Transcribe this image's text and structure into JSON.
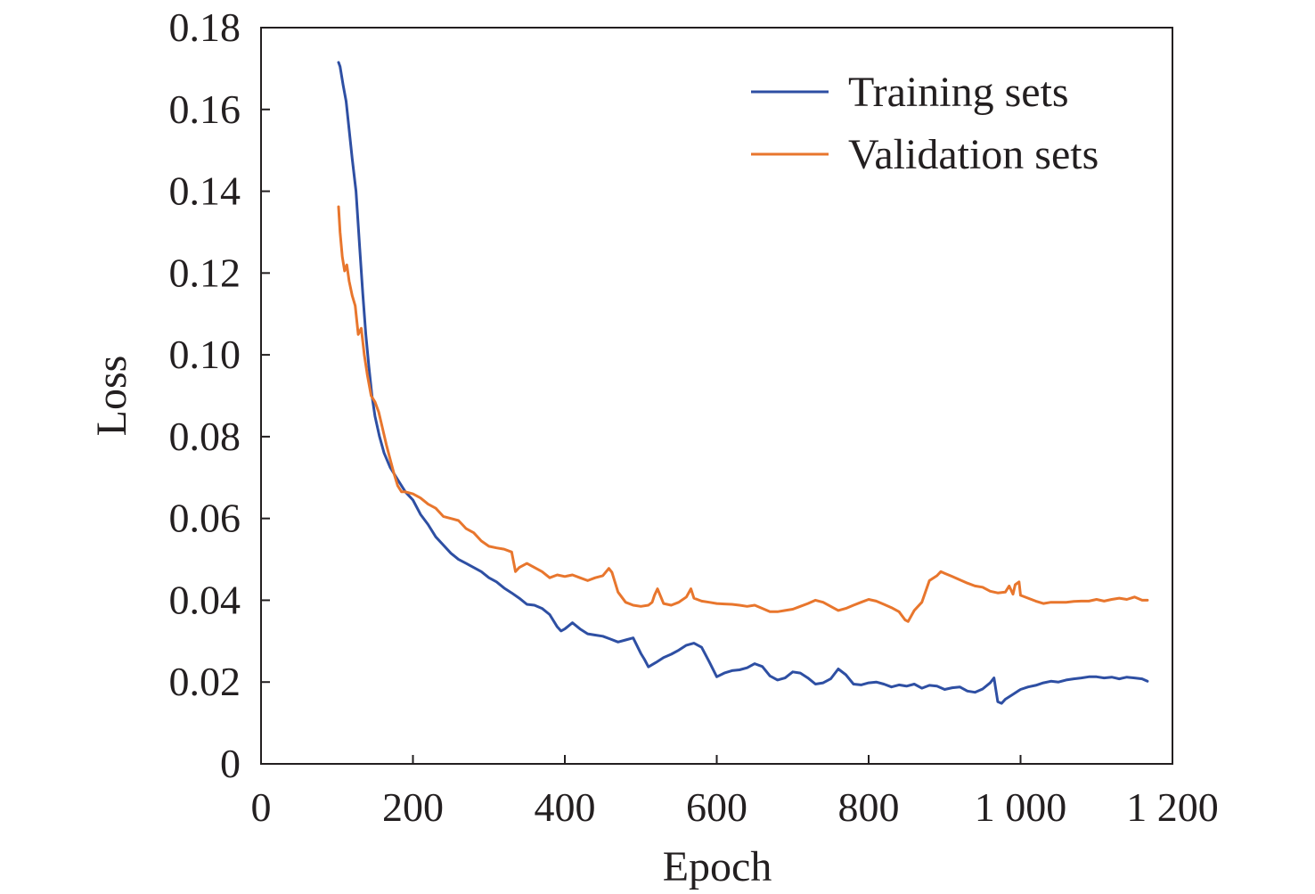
{
  "chart_data": {
    "type": "line",
    "title": "",
    "xlabel": "Epoch",
    "ylabel": "Loss",
    "xlim": [
      0,
      1200
    ],
    "ylim": [
      0,
      0.18
    ],
    "x_ticks": [
      0,
      200,
      400,
      600,
      800,
      1000,
      1200
    ],
    "x_tick_labels": [
      "0",
      "200",
      "400",
      "600",
      "800",
      "1 000",
      "1 200"
    ],
    "y_ticks": [
      0,
      0.02,
      0.04,
      0.06,
      0.08,
      0.1,
      0.12,
      0.14,
      0.16,
      0.18
    ],
    "y_tick_labels": [
      "0",
      "0.02",
      "0.04",
      "0.06",
      "0.08",
      "0.10",
      "0.12",
      "0.14",
      "0.16",
      "0.18"
    ],
    "grid": false,
    "legend_position": "top-right",
    "series": [
      {
        "name": "Training sets",
        "color": "#2e4fa3",
        "x": [
          102,
          104,
          108,
          112,
          116,
          120,
          125,
          130,
          134,
          138,
          142,
          146,
          150,
          156,
          162,
          170,
          180,
          190,
          200,
          210,
          220,
          230,
          240,
          250,
          260,
          270,
          280,
          290,
          300,
          310,
          320,
          330,
          340,
          350,
          360,
          370,
          380,
          390,
          395,
          400,
          410,
          420,
          430,
          440,
          450,
          460,
          470,
          480,
          490,
          500,
          505,
          510,
          520,
          530,
          540,
          550,
          560,
          570,
          580,
          590,
          600,
          610,
          620,
          630,
          640,
          650,
          660,
          670,
          680,
          690,
          700,
          710,
          720,
          730,
          740,
          750,
          760,
          770,
          780,
          790,
          800,
          810,
          820,
          830,
          840,
          850,
          860,
          870,
          880,
          890,
          900,
          910,
          920,
          930,
          940,
          950,
          960,
          965,
          970,
          975,
          980,
          990,
          1000,
          1010,
          1020,
          1030,
          1040,
          1050,
          1060,
          1070,
          1080,
          1090,
          1100,
          1110,
          1120,
          1130,
          1140,
          1150,
          1160,
          1167
        ],
        "values": [
          0.1715,
          0.1705,
          0.166,
          0.162,
          0.155,
          0.148,
          0.14,
          0.126,
          0.115,
          0.105,
          0.097,
          0.09,
          0.085,
          0.08,
          0.076,
          0.0725,
          0.0695,
          0.0665,
          0.0645,
          0.061,
          0.0585,
          0.0555,
          0.0535,
          0.0515,
          0.05,
          0.049,
          0.048,
          0.047,
          0.0455,
          0.0445,
          0.043,
          0.0418,
          0.0405,
          0.039,
          0.0388,
          0.038,
          0.0365,
          0.0335,
          0.0325,
          0.033,
          0.0345,
          0.033,
          0.0318,
          0.0315,
          0.0312,
          0.0305,
          0.0298,
          0.0303,
          0.0308,
          0.027,
          0.0255,
          0.0237,
          0.0248,
          0.026,
          0.0268,
          0.0278,
          0.029,
          0.0295,
          0.0285,
          0.025,
          0.0213,
          0.0222,
          0.0228,
          0.023,
          0.0235,
          0.0245,
          0.0238,
          0.0215,
          0.0205,
          0.021,
          0.0225,
          0.0222,
          0.021,
          0.0195,
          0.0198,
          0.0208,
          0.0232,
          0.0218,
          0.0195,
          0.0193,
          0.0198,
          0.02,
          0.0195,
          0.0188,
          0.0193,
          0.019,
          0.0195,
          0.0185,
          0.0192,
          0.019,
          0.0182,
          0.0186,
          0.0188,
          0.0178,
          0.0175,
          0.0183,
          0.0198,
          0.021,
          0.0152,
          0.0148,
          0.0158,
          0.017,
          0.0182,
          0.0188,
          0.0192,
          0.0198,
          0.0202,
          0.02,
          0.0205,
          0.0208,
          0.021,
          0.0213,
          0.0213,
          0.021,
          0.0212,
          0.0208,
          0.0212,
          0.021,
          0.0208,
          0.0202
        ]
      },
      {
        "name": "Validation sets",
        "color": "#e8762d",
        "x": [
          102,
          104,
          107,
          110,
          113,
          116,
          120,
          124,
          128,
          132,
          136,
          140,
          145,
          150,
          155,
          160,
          165,
          170,
          175,
          180,
          185,
          190,
          200,
          210,
          220,
          230,
          240,
          250,
          260,
          265,
          270,
          280,
          290,
          300,
          310,
          320,
          330,
          335,
          340,
          350,
          360,
          370,
          380,
          390,
          400,
          410,
          420,
          430,
          440,
          450,
          458,
          462,
          470,
          480,
          490,
          500,
          510,
          515,
          518,
          522,
          530,
          540,
          550,
          560,
          566,
          570,
          580,
          590,
          600,
          610,
          620,
          630,
          640,
          650,
          660,
          670,
          680,
          690,
          700,
          710,
          720,
          730,
          740,
          750,
          760,
          770,
          780,
          790,
          800,
          810,
          820,
          830,
          840,
          848,
          852,
          860,
          870,
          880,
          890,
          895,
          900,
          910,
          920,
          930,
          940,
          950,
          960,
          970,
          980,
          985,
          990,
          993,
          998,
          1000,
          1010,
          1020,
          1030,
          1040,
          1050,
          1060,
          1070,
          1080,
          1090,
          1100,
          1110,
          1120,
          1130,
          1140,
          1150,
          1160,
          1167
        ],
        "values": [
          0.1362,
          0.13,
          0.124,
          0.1205,
          0.122,
          0.118,
          0.1145,
          0.112,
          0.105,
          0.1065,
          0.1,
          0.095,
          0.09,
          0.0885,
          0.086,
          0.082,
          0.078,
          0.0745,
          0.071,
          0.068,
          0.0665,
          0.0665,
          0.066,
          0.065,
          0.0635,
          0.0625,
          0.0605,
          0.06,
          0.0595,
          0.0585,
          0.0575,
          0.0565,
          0.0545,
          0.0532,
          0.0528,
          0.0525,
          0.0518,
          0.047,
          0.048,
          0.049,
          0.048,
          0.047,
          0.0455,
          0.0462,
          0.0458,
          0.0462,
          0.0455,
          0.0448,
          0.0455,
          0.046,
          0.0478,
          0.0468,
          0.042,
          0.0395,
          0.0388,
          0.0385,
          0.0388,
          0.0395,
          0.0412,
          0.0428,
          0.0392,
          0.0388,
          0.0395,
          0.0408,
          0.0428,
          0.0405,
          0.0398,
          0.0395,
          0.0392,
          0.0391,
          0.039,
          0.0388,
          0.0385,
          0.0388,
          0.038,
          0.0372,
          0.0372,
          0.0375,
          0.0378,
          0.0385,
          0.0392,
          0.04,
          0.0395,
          0.0385,
          0.0375,
          0.038,
          0.0388,
          0.0395,
          0.0402,
          0.0398,
          0.039,
          0.0382,
          0.0372,
          0.0352,
          0.0348,
          0.0375,
          0.0395,
          0.0448,
          0.046,
          0.047,
          0.0466,
          0.0458,
          0.045,
          0.0442,
          0.0435,
          0.0432,
          0.0422,
          0.0418,
          0.042,
          0.0435,
          0.0415,
          0.0438,
          0.0445,
          0.0412,
          0.0405,
          0.0398,
          0.0392,
          0.0395,
          0.0395,
          0.0395,
          0.0397,
          0.0398,
          0.0398,
          0.0402,
          0.0398,
          0.0402,
          0.0405,
          0.0402,
          0.0408,
          0.04,
          0.04
        ]
      }
    ]
  }
}
